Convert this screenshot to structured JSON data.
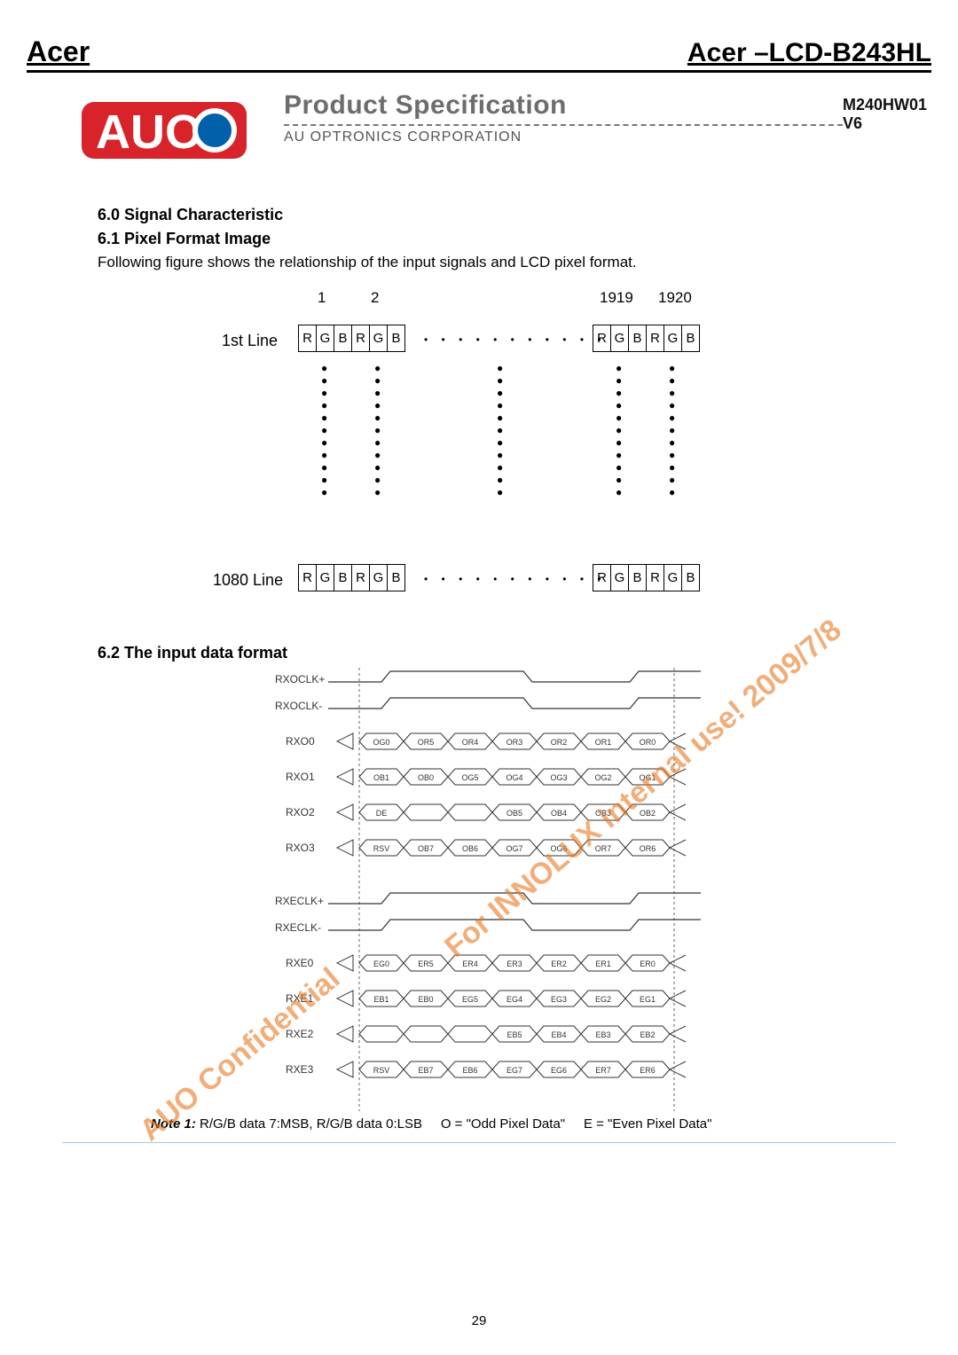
{
  "header": {
    "brand_left": "Acer",
    "brand_right": "Acer –LCD-B243HL"
  },
  "logo_text": "AUO",
  "spec": {
    "title": "Product Specification",
    "subtitle": "AU OPTRONICS CORPORATION",
    "model": "M240HW01 V6"
  },
  "sections": {
    "s60": "6.0 Signal Characteristic",
    "s61": "6.1 Pixel Format Image",
    "s61_body": "Following figure shows the relationship of the input signals and LCD pixel format.",
    "s62": "6.2 The input data format"
  },
  "pixel_fig": {
    "cols": {
      "c1": "1",
      "c2": "2",
      "c1919": "1919",
      "c1920": "1920"
    },
    "rows": {
      "r1": "1st Line",
      "rlast": "1080 Line"
    },
    "cells": [
      "R",
      "G",
      "B",
      "R",
      "G",
      "B"
    ]
  },
  "signals_odd": {
    "labels": [
      "RXOCLK+",
      "RXOCLK-",
      "RXO0",
      "RXO1",
      "RXO2",
      "RXO3"
    ],
    "d0": [
      "OG0",
      "OR5",
      "OR4",
      "OR3",
      "OR2",
      "OR1",
      "OR0"
    ],
    "d1": [
      "OB1",
      "OB0",
      "OG5",
      "OG4",
      "OG3",
      "OG2",
      "OG1"
    ],
    "d2": [
      "DE",
      "",
      "",
      "OB5",
      "OB4",
      "OB3",
      "OB2"
    ],
    "d3": [
      "RSV",
      "OB7",
      "OB6",
      "OG7",
      "OG6",
      "OR7",
      "OR6"
    ]
  },
  "signals_even": {
    "labels": [
      "RXECLK+",
      "RXECLK-",
      "RXE0",
      "RXE1",
      "RXE2",
      "RXE3"
    ],
    "d0": [
      "EG0",
      "ER5",
      "ER4",
      "ER3",
      "ER2",
      "ER1",
      "ER0"
    ],
    "d1": [
      "EB1",
      "EB0",
      "EG5",
      "EG4",
      "EG3",
      "EG2",
      "EG1"
    ],
    "d2": [
      "",
      "",
      "",
      "EB5",
      "EB4",
      "EB3",
      "EB2"
    ],
    "d3": [
      "RSV",
      "EB7",
      "EB6",
      "EG7",
      "EG6",
      "ER7",
      "ER6"
    ]
  },
  "note": {
    "label": "Note 1:",
    "t1": "R/G/B data 7:MSB, R/G/B data 0:LSB",
    "t2": "O = \"Odd Pixel Data\"",
    "t3": "E = \"Even Pixel Data\""
  },
  "page_number": "29",
  "watermark": {
    "line1": "AUO Confidential",
    "line2": "For INNOLUX internal use! 2009/7/8"
  },
  "colors": {
    "logo_red": "#d8232a",
    "logo_blue": "#0060a9",
    "underline_gray": "#777777",
    "light_rule": "#a8c7e5",
    "orange_wm": "rgba(231,120,35,0.65)"
  }
}
